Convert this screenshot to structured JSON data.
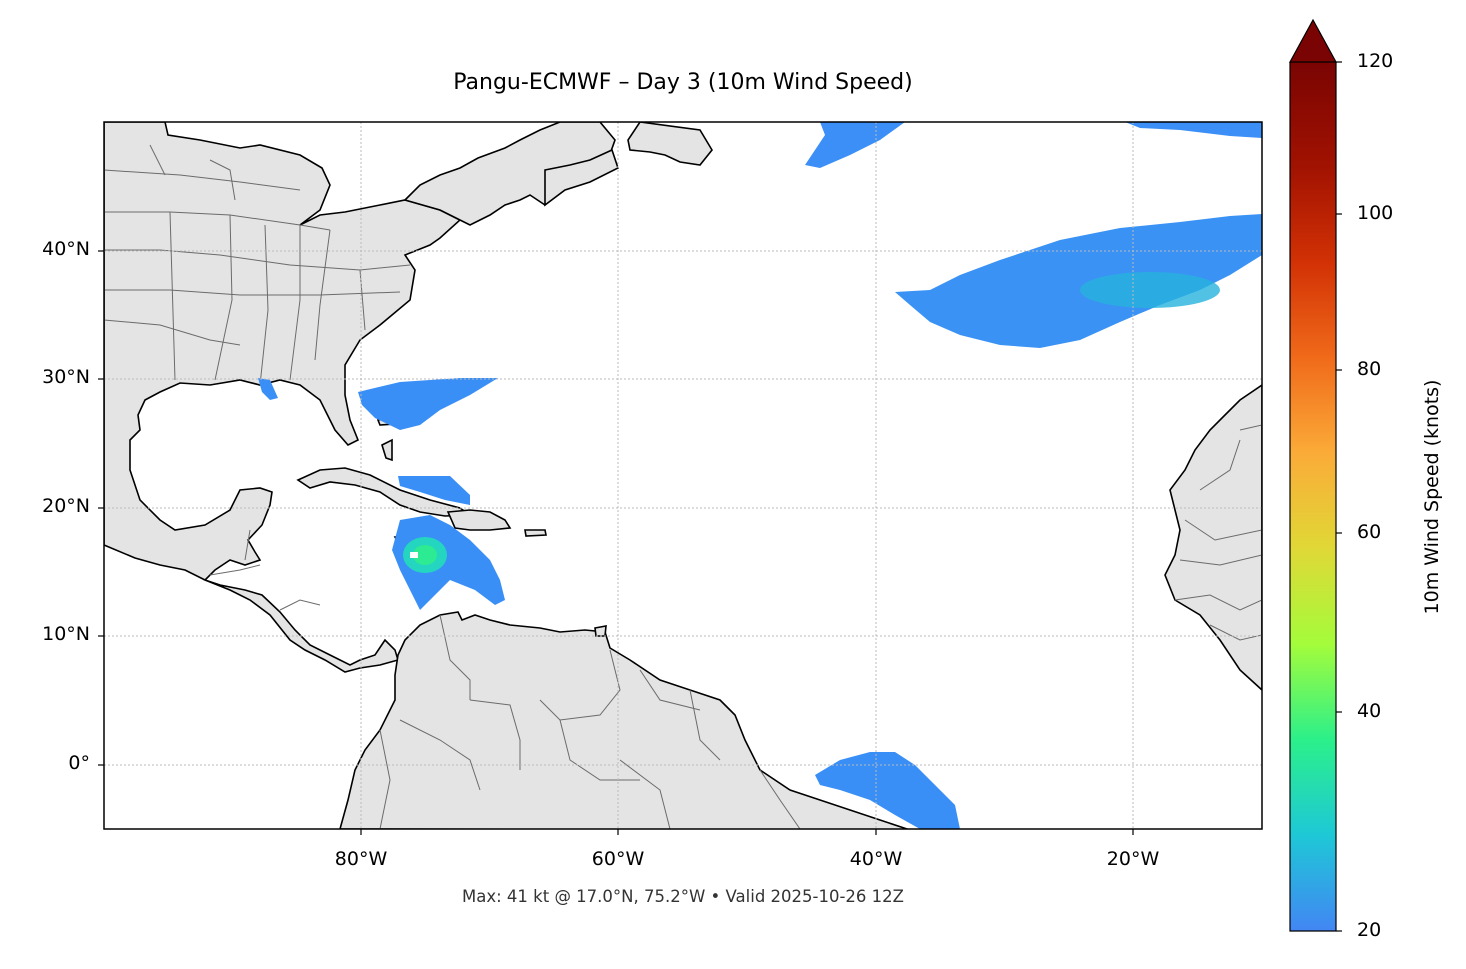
{
  "title": "Pangu-ECMWF – Day 3 (10m Wind Speed)",
  "footer": "Max: 41 kt @ 17.0°N, 75.2°W • Valid 2025-10-26 12Z",
  "map": {
    "extent": {
      "lon": [
        -100,
        -10
      ],
      "lat": [
        -5,
        50
      ]
    },
    "lat_ticks": [
      "40°N",
      "30°N",
      "20°N",
      "10°N",
      "0°"
    ],
    "lon_ticks": [
      "80°W",
      "60°W",
      "40°W",
      "20°W"
    ],
    "gridlines": true,
    "land_color": "#e4e4e4",
    "coast_color": "#000000",
    "border_color": "#6b6b6b"
  },
  "colorbar": {
    "label": "10m Wind Speed (knots)",
    "ticks": [
      "120",
      "100",
      "80",
      "60",
      "40",
      "20"
    ],
    "range": [
      20,
      120
    ],
    "extend": "max",
    "colormap": "turbo",
    "stops": [
      "#4286f4",
      "#1ec8d6",
      "#2bf08a",
      "#a4fc3b",
      "#e0d836",
      "#fbab38",
      "#f06a1a",
      "#d23105",
      "#a11201",
      "#7a0403"
    ]
  },
  "features": [
    {
      "name": "wind-patch-north-atlantic",
      "max_kt": 30
    },
    {
      "name": "wind-patch-azores",
      "max_kt": 32
    },
    {
      "name": "wind-patch-florida",
      "max_kt": 26
    },
    {
      "name": "wind-patch-bahamas",
      "max_kt": 24
    },
    {
      "name": "wind-patch-caribbean-storm",
      "max_kt": 41
    },
    {
      "name": "wind-patch-brazil",
      "max_kt": 26
    }
  ]
}
